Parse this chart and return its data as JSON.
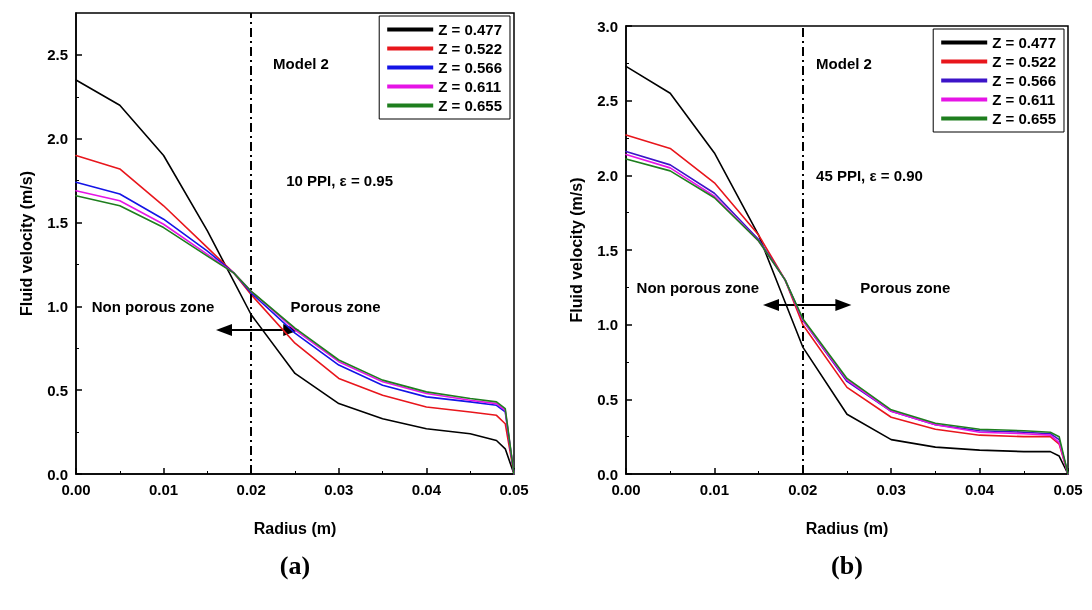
{
  "chart_data": [
    {
      "type": "line",
      "xlabel": "Radius (m)",
      "ylabel": "Fluid velocity (m/s)",
      "x": [
        0,
        0.005,
        0.01,
        0.015,
        0.018,
        0.02,
        0.025,
        0.03,
        0.035,
        0.04,
        0.045,
        0.048,
        0.049,
        0.05
      ],
      "xlim": [
        0,
        0.05
      ],
      "xticks": [
        {
          "value": 0,
          "label": "0.00"
        },
        0.01,
        0.02,
        0.03,
        0.04,
        0.05
      ],
      "ylim": [
        0,
        2.75
      ],
      "yticks": [
        {
          "value": 0,
          "label": "0.0"
        },
        0.5,
        {
          "value": 1,
          "label": "1.0"
        },
        1.5,
        {
          "value": 2,
          "label": "2.0"
        },
        2.5
      ],
      "legend": "top right",
      "grid": false,
      "series": [
        {
          "name": "Z = 0.477",
          "color": "#000000",
          "values": [
            2.35,
            2.2,
            1.9,
            1.45,
            1.15,
            0.95,
            0.6,
            0.42,
            0.33,
            0.27,
            0.24,
            0.2,
            0.15,
            0
          ]
        },
        {
          "name": "Z = 0.522",
          "color": "#e8161c",
          "values": [
            1.9,
            1.82,
            1.6,
            1.35,
            1.2,
            1.07,
            0.78,
            0.57,
            0.47,
            0.4,
            0.37,
            0.35,
            0.3,
            0
          ]
        },
        {
          "name": "Z = 0.566",
          "color": "#1414e6",
          "values": [
            1.74,
            1.67,
            1.52,
            1.33,
            1.2,
            1.08,
            0.84,
            0.65,
            0.53,
            0.46,
            0.43,
            0.41,
            0.37,
            0
          ]
        },
        {
          "name": "Z = 0.611",
          "color": "#e614e6",
          "values": [
            1.69,
            1.63,
            1.49,
            1.31,
            1.2,
            1.09,
            0.86,
            0.67,
            0.55,
            0.48,
            0.44,
            0.42,
            0.38,
            0
          ]
        },
        {
          "name": "Z = 0.655",
          "color": "#1e7e1e",
          "values": [
            1.66,
            1.6,
            1.47,
            1.3,
            1.2,
            1.09,
            0.87,
            0.68,
            0.56,
            0.49,
            0.45,
            0.43,
            0.39,
            0
          ]
        }
      ],
      "ref_lines": [
        {
          "axis": "x",
          "value": 0.02,
          "color": "#000000",
          "line_style": "dashdot"
        }
      ],
      "annotations": [
        "Model 2",
        "10 PPI, ε = 0.95",
        "Non porous zone",
        "Porous zone",
        "(a)"
      ]
    },
    {
      "type": "line",
      "xlabel": "Radius (m)",
      "ylabel": "Fluid velocity (m/s)",
      "x": [
        0,
        0.005,
        0.01,
        0.015,
        0.018,
        0.02,
        0.025,
        0.03,
        0.035,
        0.04,
        0.045,
        0.048,
        0.049,
        0.05
      ],
      "xlim": [
        0,
        0.05
      ],
      "xticks": [
        {
          "value": 0,
          "label": "0.00"
        },
        0.01,
        0.02,
        0.03,
        0.04,
        0.05
      ],
      "ylim": [
        0,
        3
      ],
      "yticks": [
        {
          "value": 0,
          "label": "0.0"
        },
        0.5,
        {
          "value": 1,
          "label": "1.0"
        },
        1.5,
        {
          "value": 2,
          "label": "2.0"
        },
        2.5,
        {
          "value": 3,
          "label": "3.0"
        }
      ],
      "legend": "top right",
      "grid": false,
      "series": [
        {
          "name": "Z = 0.477",
          "color": "#000000",
          "values": [
            2.73,
            2.55,
            2.15,
            1.6,
            1.15,
            0.85,
            0.4,
            0.23,
            0.18,
            0.16,
            0.15,
            0.15,
            0.12,
            0
          ]
        },
        {
          "name": "Z = 0.522",
          "color": "#e8161c",
          "values": [
            2.27,
            2.18,
            1.95,
            1.6,
            1.3,
            1.0,
            0.58,
            0.38,
            0.3,
            0.26,
            0.25,
            0.25,
            0.2,
            0
          ]
        },
        {
          "name": "Z = 0.566",
          "color": "#3c14c8",
          "values": [
            2.16,
            2.07,
            1.88,
            1.57,
            1.3,
            1.03,
            0.62,
            0.42,
            0.33,
            0.29,
            0.28,
            0.27,
            0.23,
            0
          ]
        },
        {
          "name": "Z = 0.611",
          "color": "#e614e6",
          "values": [
            2.14,
            2.05,
            1.86,
            1.56,
            1.3,
            1.03,
            0.63,
            0.42,
            0.33,
            0.28,
            0.27,
            0.26,
            0.21,
            0
          ]
        },
        {
          "name": "Z = 0.655",
          "color": "#1e7e1e",
          "values": [
            2.11,
            2.03,
            1.85,
            1.56,
            1.3,
            1.04,
            0.64,
            0.43,
            0.34,
            0.3,
            0.29,
            0.28,
            0.25,
            0
          ]
        }
      ],
      "ref_lines": [
        {
          "axis": "x",
          "value": 0.02,
          "color": "#000000",
          "line_style": "dashdot"
        }
      ],
      "annotations": [
        "Model 2",
        "45 PPI, ε = 0.90",
        "Non porous zone",
        "Porous zone",
        "(b)"
      ]
    }
  ]
}
